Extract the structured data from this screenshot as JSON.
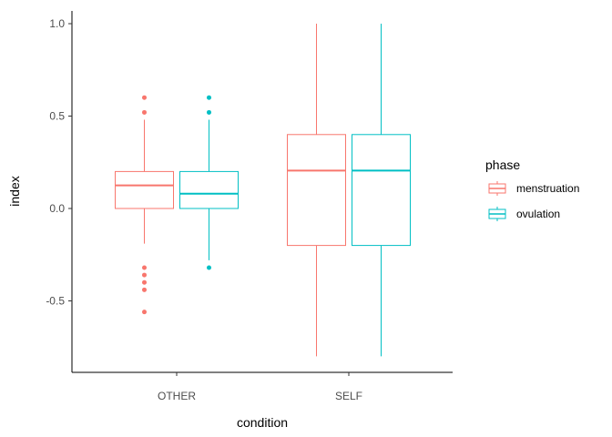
{
  "chart_data": {
    "type": "boxplot",
    "xlabel": "condition",
    "ylabel": "index",
    "categories": [
      "OTHER",
      "SELF"
    ],
    "ylim": [
      -0.88,
      1.08
    ],
    "yticks": [
      -0.5,
      0.0,
      0.5,
      1.0
    ],
    "ytick_labels": [
      "-0.5",
      "0.0",
      "0.5",
      "1.0"
    ],
    "legend": {
      "title": "phase",
      "position": "right",
      "entries": [
        "menstruation",
        "ovulation"
      ]
    },
    "series": [
      {
        "name": "menstruation",
        "color": "#F8766D",
        "boxes": [
          {
            "category": "OTHER",
            "lower_whisker": -0.19,
            "q1": 0.0,
            "median": 0.125,
            "q3": 0.2,
            "upper_whisker": 0.48,
            "outliers": [
              0.6,
              0.52,
              -0.32,
              -0.36,
              -0.4,
              -0.44,
              -0.56
            ]
          },
          {
            "category": "SELF",
            "lower_whisker": -0.8,
            "q1": -0.2,
            "median": 0.205,
            "q3": 0.4,
            "upper_whisker": 1.0,
            "outliers": []
          }
        ]
      },
      {
        "name": "ovulation",
        "color": "#00BFC4",
        "boxes": [
          {
            "category": "OTHER",
            "lower_whisker": -0.28,
            "q1": 0.0,
            "median": 0.08,
            "q3": 0.2,
            "upper_whisker": 0.48,
            "outliers": [
              0.6,
              0.52,
              -0.32
            ]
          },
          {
            "category": "SELF",
            "lower_whisker": -0.8,
            "q1": -0.2,
            "median": 0.205,
            "q3": 0.4,
            "upper_whisker": 1.0,
            "outliers": []
          }
        ]
      }
    ]
  }
}
